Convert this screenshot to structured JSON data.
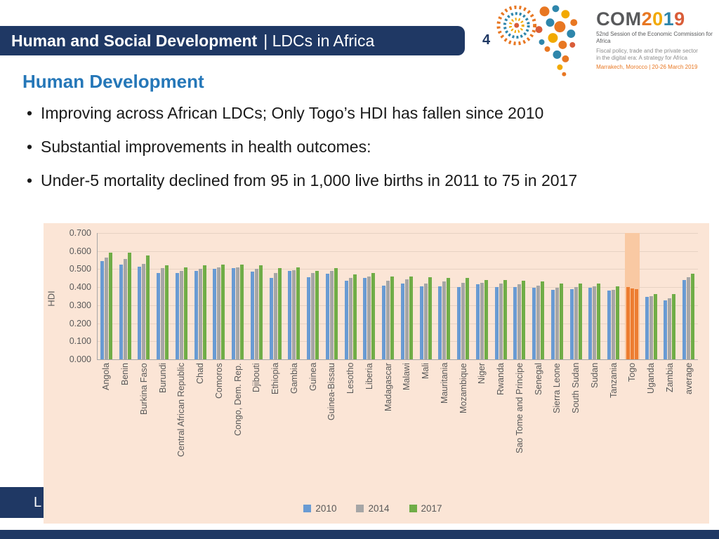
{
  "header": {
    "title_bold": "Human and Social Development",
    "title_rest": "| LDCs in Africa",
    "slide_number": "4"
  },
  "logo": {
    "com": "COM",
    "year_digits": [
      "2",
      "0",
      "1",
      "9"
    ],
    "line1": "52nd Session of the Economic Commission for Africa",
    "line2": "Fiscal policy, trade and the private sector in the digital era: A strategy for Africa",
    "line3": "Marrakech, Morocco | 20-26 March 2019"
  },
  "section_title": "Human Development",
  "bullets": [
    "Improving across African LDCs; Only Togo’s HDI has fallen since 2010",
    "Substantial improvements in health outcomes:",
    "Under-5 mortality declined from 95 in 1,000 live births in 2011 to 75 in 2017"
  ],
  "chart_data": {
    "type": "bar",
    "title": "",
    "xlabel": "",
    "ylabel": "HDI",
    "ylim": [
      0,
      0.7
    ],
    "yticks": [
      "0.000",
      "0.100",
      "0.200",
      "0.300",
      "0.400",
      "0.500",
      "0.600",
      "0.700"
    ],
    "grid": true,
    "legend_position": "bottom",
    "plot_background": "#FBE5D6",
    "highlight_category": "Togo",
    "highlight_color": "#ED7D31",
    "highlight_background": "#F9C9A3",
    "categories": [
      "Angola",
      "Benin",
      "Burkina Faso",
      "Burundi",
      "Central African Republic",
      "Chad",
      "Comoros",
      "Congo, Dem. Rep.",
      "Djibouti",
      "Ethiopia",
      "Gambia",
      "Guinea",
      "Guinea-Bissau",
      "Lesotho",
      "Liberia",
      "Madagascar",
      "Malawi",
      "Mali",
      "Mauritania",
      "Mozambique",
      "Niger",
      "Rwanda",
      "Sao Tome and Principe",
      "Senegal",
      "Sierra Leone",
      "South Sudan",
      "Sudan",
      "Tanzania",
      "Togo",
      "Uganda",
      "Zambia",
      "average"
    ],
    "series": [
      {
        "name": "2010",
        "color": "#699BD3",
        "values": [
          0.545,
          0.525,
          0.515,
          0.48,
          0.48,
          0.49,
          0.5,
          0.505,
          0.485,
          0.45,
          0.49,
          0.455,
          0.475,
          0.435,
          0.45,
          0.41,
          0.42,
          0.405,
          0.405,
          0.4,
          0.415,
          0.4,
          0.4,
          0.395,
          0.385,
          0.39,
          0.395,
          0.38,
          0.4,
          0.345,
          0.325,
          0.44
        ]
      },
      {
        "name": "2014",
        "color": "#A6A6A6",
        "values": [
          0.565,
          0.555,
          0.53,
          0.505,
          0.49,
          0.5,
          0.51,
          0.51,
          0.5,
          0.48,
          0.495,
          0.48,
          0.49,
          0.45,
          0.46,
          0.435,
          0.445,
          0.42,
          0.43,
          0.425,
          0.425,
          0.42,
          0.415,
          0.41,
          0.395,
          0.4,
          0.405,
          0.385,
          0.393,
          0.35,
          0.34,
          0.455
        ]
      },
      {
        "name": "2017",
        "color": "#70AD47",
        "values": [
          0.59,
          0.59,
          0.575,
          0.52,
          0.51,
          0.52,
          0.525,
          0.525,
          0.52,
          0.505,
          0.51,
          0.49,
          0.505,
          0.47,
          0.48,
          0.46,
          0.46,
          0.455,
          0.45,
          0.45,
          0.44,
          0.44,
          0.435,
          0.43,
          0.42,
          0.42,
          0.42,
          0.405,
          0.387,
          0.36,
          0.36,
          0.475
        ]
      }
    ]
  },
  "footer": {
    "partial_label": "L"
  }
}
